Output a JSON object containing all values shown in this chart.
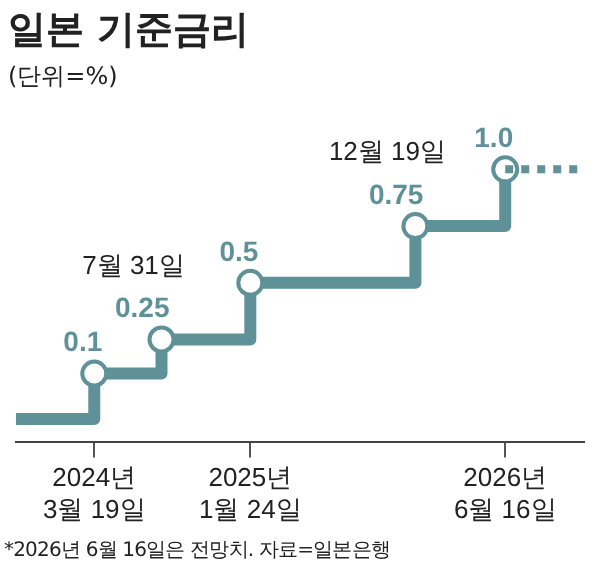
{
  "chart_data": {
    "type": "step",
    "title": "일본 기준금리",
    "subtitle": "(단위=%)",
    "xlim": [
      "2023-10-15",
      "2026-11-20"
    ],
    "xticks": [
      {
        "value": "2024-03-19",
        "label": "2024년\n3월 19일"
      },
      {
        "value": "2025-01-24",
        "label": "2025년\n1월 24일"
      },
      {
        "value": "2026-06-16",
        "label": "2026년\n6월 16일"
      }
    ],
    "series": [
      {
        "color": "#5e9198",
        "line_style": "solid",
        "x": [
          "2023-10-15",
          "2024-03-19",
          "2024-07-31",
          "2025-01-24",
          "2025-12-19",
          "2026-06-16"
        ],
        "values": [
          -0.1,
          0.1,
          0.25,
          0.5,
          0.75,
          1.0
        ],
        "value_labels": [
          null,
          "0.1",
          "0.25",
          "0.5",
          "0.75",
          "1.0"
        ]
      },
      {
        "color": "#5e9198",
        "line_style": "dotted",
        "marker": "none",
        "x": [
          "2026-06-16",
          "2026-11-20"
        ],
        "values": [
          1.0,
          1.0
        ]
      }
    ],
    "annotations": [
      {
        "text": "7월 31일",
        "x": "2024-07-31",
        "y": 0.25
      },
      {
        "text": "12월 19일",
        "x": "2025-12-19",
        "y": 0.75
      },
      "*2026년 6월 16일은 전망치. 자료=일본은행"
    ],
    "legend": false,
    "grid": false,
    "marker": "circle"
  }
}
